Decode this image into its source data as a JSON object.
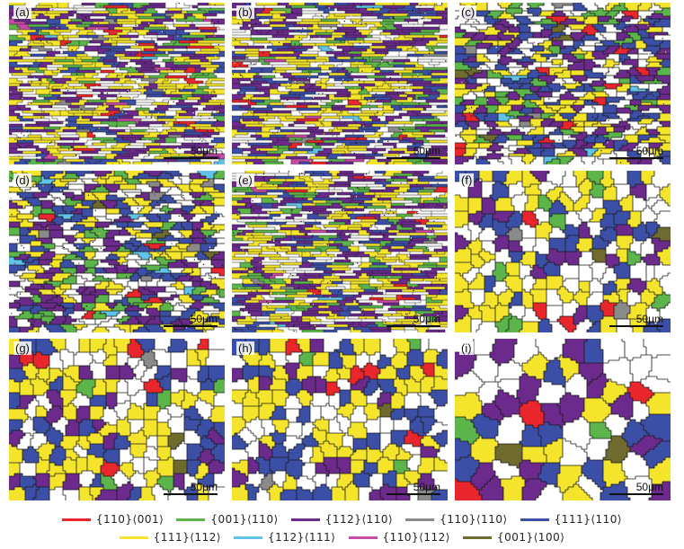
{
  "panels": [
    {
      "label": "(a)",
      "scale": "50μm",
      "style": "deformed",
      "seed": 11
    },
    {
      "label": "(b)",
      "scale": "50μm",
      "style": "deformed",
      "seed": 23
    },
    {
      "label": "(c)",
      "scale": "50μm",
      "style": "partial",
      "seed": 37
    },
    {
      "label": "(d)",
      "scale": "50μm",
      "style": "partial",
      "seed": 41
    },
    {
      "label": "(e)",
      "scale": "50μm",
      "style": "deformed",
      "seed": 53
    },
    {
      "label": "(f)",
      "scale": "50μm",
      "style": "recrystallized",
      "seed": 67
    },
    {
      "label": "(g)",
      "scale": "50μm",
      "style": "recrystallized",
      "seed": 71
    },
    {
      "label": "(h)",
      "scale": "50μm",
      "style": "recrystallized",
      "seed": 83
    },
    {
      "label": "(i)",
      "scale": "50μm",
      "style": "coarse",
      "seed": 97
    }
  ],
  "legend": {
    "row1": [
      {
        "label": "{110}⟨001⟩",
        "color": "#e8262b"
      },
      {
        "label": "{001}⟨110⟩",
        "color": "#5bb54a"
      },
      {
        "label": "{112}⟨110⟩",
        "color": "#6b2a8c"
      },
      {
        "label": "{110}⟨110⟩",
        "color": "#8a8a8a"
      },
      {
        "label": "{111}⟨110⟩",
        "color": "#3c4fa6"
      }
    ],
    "row2": [
      {
        "label": "{111}⟨112⟩",
        "color": "#f4e42b"
      },
      {
        "label": "{112}⟨111⟩",
        "color": "#5fc4e8"
      },
      {
        "label": "{110}⟨112⟩",
        "color": "#c94aa6"
      },
      {
        "label": "{001}⟨100⟩",
        "color": "#6f6a2e"
      }
    ]
  }
}
